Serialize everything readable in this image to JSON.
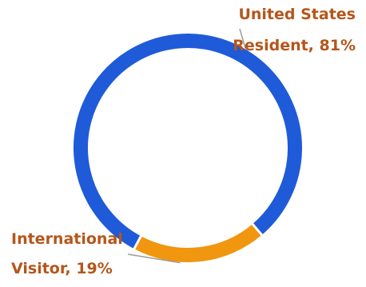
{
  "chart_data": {
    "type": "pie",
    "variant": "donut",
    "title": "",
    "categories": [
      "United States Resident",
      "International Visitor"
    ],
    "values": [
      81,
      19
    ],
    "unit": "%",
    "colors": [
      "#1f5bd8",
      "#f0960f"
    ],
    "label_color": "#b5561a",
    "leader_color": "#9a9a9a",
    "data_labels": [
      {
        "line1": "United States",
        "line2": "Resident, 81%"
      },
      {
        "line1": "International",
        "line2": "Visitor, 19%"
      }
    ],
    "legend": "none"
  }
}
